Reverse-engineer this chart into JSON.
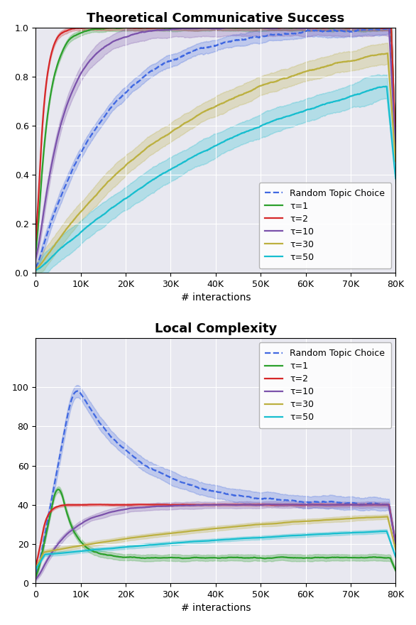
{
  "title1": "Theoretical Communicative Success",
  "title2": "Local Complexity",
  "xlabel": "# interactions",
  "background_color": "#e8e8f0",
  "x_max": 80000,
  "x_ticks": [
    0,
    10000,
    20000,
    30000,
    40000,
    50000,
    60000,
    70000,
    80000
  ],
  "x_tick_labels": [
    "0",
    "10K",
    "20K",
    "30K",
    "40K",
    "50K",
    "60K",
    "70K",
    "80K"
  ],
  "plot1_ylim": [
    0.0,
    1.0
  ],
  "plot1_yticks": [
    0.0,
    0.2,
    0.4,
    0.6,
    0.8,
    1.0
  ],
  "plot2_ylim": [
    0,
    125
  ],
  "plot2_yticks": [
    0,
    20,
    40,
    60,
    80,
    100
  ],
  "legend_labels": [
    "Random Topic Choice",
    "τ=1",
    "τ=2",
    "τ=10",
    "τ=30",
    "τ=50"
  ],
  "colors": {
    "random": "#4169e1",
    "tau1": "#2ca02c",
    "tau2": "#d62728",
    "tau10": "#7b52ab",
    "tau30": "#bcb040",
    "tau50": "#17becf"
  },
  "alpha_fill": 0.25,
  "linewidth": 1.6,
  "title_fontsize": 13,
  "tick_fontsize": 9,
  "legend_fontsize": 9
}
